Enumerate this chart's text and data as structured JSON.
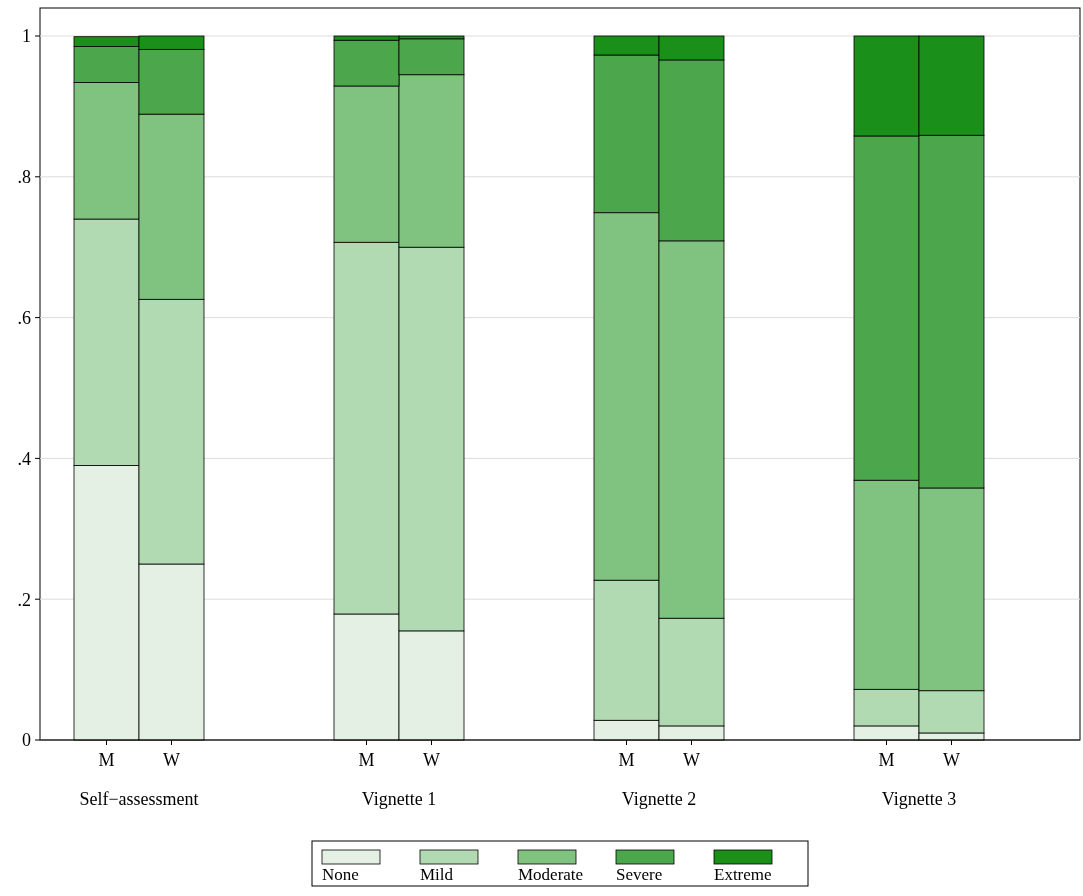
{
  "chart_data": {
    "type": "bar",
    "stacked": true,
    "categories": [
      "M",
      "W",
      "M",
      "W",
      "M",
      "W",
      "M",
      "W"
    ],
    "series": [
      {
        "name": "None",
        "color": "#e5f0e5",
        "values": [
          0.39,
          0.25,
          0.179,
          0.155,
          0.028,
          0.02,
          0.02,
          0.01
        ]
      },
      {
        "name": "Mild",
        "color": "#b2dab2",
        "values": [
          0.35,
          0.376,
          0.528,
          0.545,
          0.199,
          0.153,
          0.052,
          0.06
        ]
      },
      {
        "name": "Moderate",
        "color": "#80c280",
        "values": [
          0.194,
          0.263,
          0.222,
          0.245,
          0.522,
          0.536,
          0.297,
          0.288
        ]
      },
      {
        "name": "Severe",
        "color": "#4ca64c",
        "values": [
          0.051,
          0.092,
          0.065,
          0.051,
          0.224,
          0.257,
          0.489,
          0.501
        ]
      },
      {
        "name": "Extreme",
        "color": "#1a8f1a",
        "values": [
          0.014,
          0.019,
          0.006,
          0.004,
          0.027,
          0.034,
          0.142,
          0.141
        ]
      }
    ],
    "annotations": [
      "Self−assessment",
      "Vignette 1",
      "Vignette 2",
      "Vignette 3"
    ],
    "ylim": [
      0,
      1
    ],
    "yticks": [
      0,
      {
        "value": 0.2,
        "label": ".2"
      },
      {
        "value": 0.4,
        "label": ".4"
      },
      {
        "value": 0.6,
        "label": ".6"
      },
      {
        "value": 0.8,
        "label": ".8"
      },
      1
    ],
    "grid": "y",
    "legend": "bottom"
  }
}
